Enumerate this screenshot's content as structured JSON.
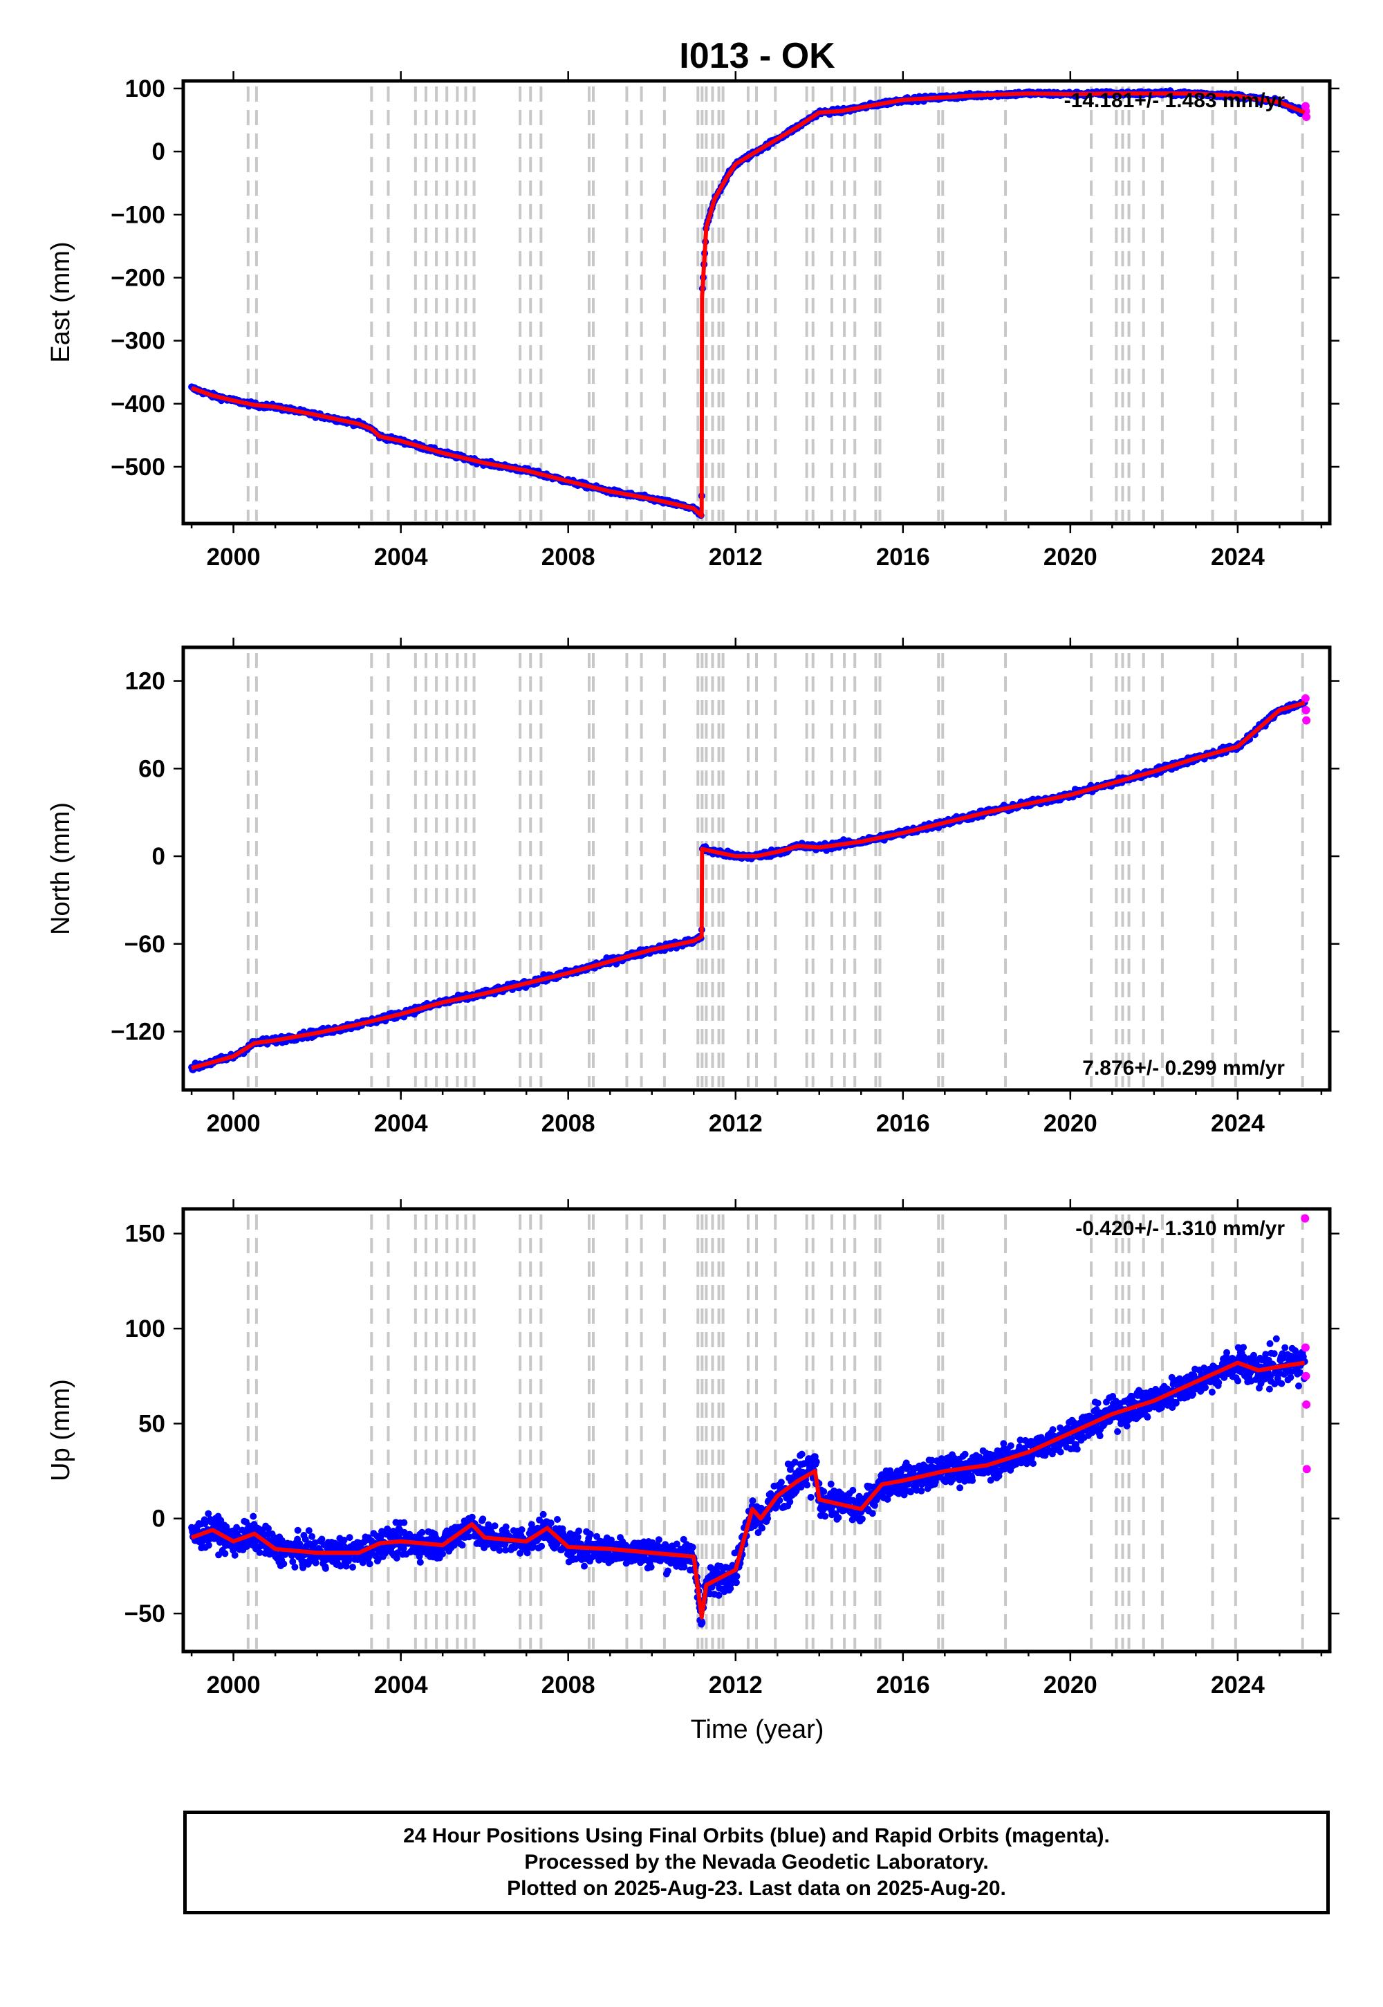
{
  "title": "I013 - OK",
  "xlabel": "Time (year)",
  "x_ticks": [
    2000,
    2004,
    2008,
    2012,
    2016,
    2020,
    2024
  ],
  "x_range": [
    1998.8,
    2026.2
  ],
  "event_lines": [
    2000.35,
    2000.55,
    2003.3,
    2003.7,
    2004.35,
    2004.6,
    2004.85,
    2005.1,
    2005.35,
    2005.55,
    2005.75,
    2006.85,
    2007.1,
    2007.35,
    2008.5,
    2008.6,
    2009.4,
    2009.75,
    2010.3,
    2011.1,
    2011.2,
    2011.3,
    2011.45,
    2011.6,
    2011.7,
    2012.3,
    2012.5,
    2012.95,
    2013.7,
    2013.85,
    2014.3,
    2014.6,
    2014.85,
    2015.35,
    2015.45,
    2016.85,
    2016.95,
    2018.45,
    2020.5,
    2021.1,
    2021.25,
    2021.4,
    2021.75,
    2022.2,
    2023.4,
    2023.95,
    2025.55
  ],
  "colors": {
    "final_orbits": "#0000ff",
    "rapid_orbits": "#ff00ff",
    "model": "#ff0000",
    "event_lines": "#c8c8c8"
  },
  "footer": {
    "line1": "24 Hour Positions Using Final Orbits (blue) and Rapid Orbits (magenta).",
    "line2": "Processed by the Nevada Geodetic Laboratory.",
    "line3": "Plotted on 2025-Aug-23. Last data on 2025-Aug-20."
  },
  "chart_data": [
    {
      "type": "scatter",
      "component": "East",
      "ylabel": "East (mm)",
      "ylim": [
        -590,
        112
      ],
      "y_ticks": [
        100,
        0,
        -100,
        -200,
        -300,
        -400,
        -500
      ],
      "rate_text": "-14.181+/- 1.483 mm/yr",
      "rate_position": "top-right",
      "series": [
        {
          "name": "Final Orbits",
          "x": [
            1999.0,
            1999.5,
            2000.0,
            2000.5,
            2001.0,
            2002.0,
            2003.0,
            2003.3,
            2003.5,
            2004.0,
            2005.0,
            2006.0,
            2007.0,
            2008.0,
            2009.0,
            2010.0,
            2011.0,
            2011.19,
            2011.2,
            2011.3,
            2011.5,
            2011.8,
            2012.0,
            2012.5,
            2013.0,
            2013.5,
            2014.0,
            2014.5,
            2015.0,
            2015.5,
            2016.0,
            2017.0,
            2018.0,
            2019.0,
            2020.0,
            2021.0,
            2022.0,
            2023.0,
            2024.0,
            2025.0,
            2025.6
          ],
          "y": [
            -375,
            -387,
            -395,
            -402,
            -405,
            -418,
            -432,
            -440,
            -452,
            -459,
            -478,
            -494,
            -506,
            -523,
            -539,
            -551,
            -566,
            -578,
            -230,
            -120,
            -75,
            -40,
            -20,
            0,
            20,
            40,
            62,
            64,
            70,
            76,
            82,
            86,
            90,
            92,
            91,
            92,
            92,
            92,
            88,
            78,
            62
          ]
        },
        {
          "name": "Rapid Orbits",
          "x": [
            2025.62,
            2025.63,
            2025.64
          ],
          "y": [
            72,
            64,
            55
          ]
        }
      ]
    },
    {
      "type": "scatter",
      "component": "North",
      "ylabel": "North (mm)",
      "ylim": [
        -160,
        143
      ],
      "y_ticks": [
        120,
        60,
        0,
        -60,
        -120
      ],
      "rate_text": "7.876+/- 0.299 mm/yr",
      "rate_position": "bottom-right",
      "series": [
        {
          "name": "Final Orbits",
          "x": [
            1999.0,
            1999.5,
            2000.0,
            2000.5,
            2001.0,
            2002.0,
            2003.0,
            2004.0,
            2005.0,
            2006.0,
            2007.0,
            2008.0,
            2009.0,
            2010.0,
            2011.0,
            2011.19,
            2011.2,
            2011.5,
            2012.0,
            2012.5,
            2013.0,
            2013.5,
            2014.0,
            2015.0,
            2016.0,
            2017.0,
            2018.0,
            2019.0,
            2020.0,
            2021.0,
            2022.0,
            2023.0,
            2024.0,
            2025.0,
            2025.6
          ],
          "y": [
            -145,
            -141,
            -137,
            -128,
            -126,
            -121,
            -115,
            -108,
            -100,
            -94,
            -87,
            -80,
            -72,
            -64,
            -58,
            -55,
            5,
            3,
            0,
            0,
            3,
            7,
            6,
            10,
            16,
            23,
            30,
            36,
            42,
            50,
            58,
            67,
            75,
            100,
            105
          ]
        },
        {
          "name": "Rapid Orbits",
          "x": [
            2025.62,
            2025.63,
            2025.64
          ],
          "y": [
            108,
            100,
            93
          ]
        }
      ]
    },
    {
      "type": "scatter",
      "component": "Up",
      "ylabel": "Up (mm)",
      "ylim": [
        -70,
        163
      ],
      "y_ticks": [
        150,
        100,
        50,
        0,
        -50
      ],
      "rate_text": "-0.420+/- 1.310 mm/yr",
      "rate_position": "top-right",
      "series": [
        {
          "name": "Final Orbits",
          "x": [
            1999.0,
            1999.5,
            2000.0,
            2000.5,
            2001.0,
            2002.0,
            2003.0,
            2003.5,
            2004.0,
            2005.0,
            2005.7,
            2006.0,
            2007.0,
            2007.5,
            2008.0,
            2009.0,
            2010.0,
            2011.0,
            2011.19,
            2011.3,
            2012.0,
            2012.4,
            2012.6,
            2013.0,
            2013.5,
            2013.9,
            2014.0,
            2015.0,
            2015.5,
            2016.0,
            2017.0,
            2018.0,
            2019.0,
            2020.0,
            2021.0,
            2022.0,
            2023.0,
            2024.0,
            2024.5,
            2025.0,
            2025.6
          ],
          "y": [
            -10,
            -6,
            -12,
            -8,
            -16,
            -18,
            -18,
            -13,
            -12,
            -14,
            -3,
            -10,
            -12,
            -5,
            -15,
            -16,
            -18,
            -20,
            -52,
            -35,
            -27,
            5,
            0,
            12,
            20,
            25,
            10,
            5,
            18,
            20,
            25,
            28,
            35,
            45,
            55,
            62,
            72,
            82,
            78,
            80,
            82
          ]
        },
        {
          "name": "Rapid Orbits",
          "x": [
            2025.61,
            2025.62,
            2025.63,
            2025.64,
            2025.65
          ],
          "y": [
            158,
            90,
            75,
            60,
            26
          ]
        }
      ]
    }
  ]
}
